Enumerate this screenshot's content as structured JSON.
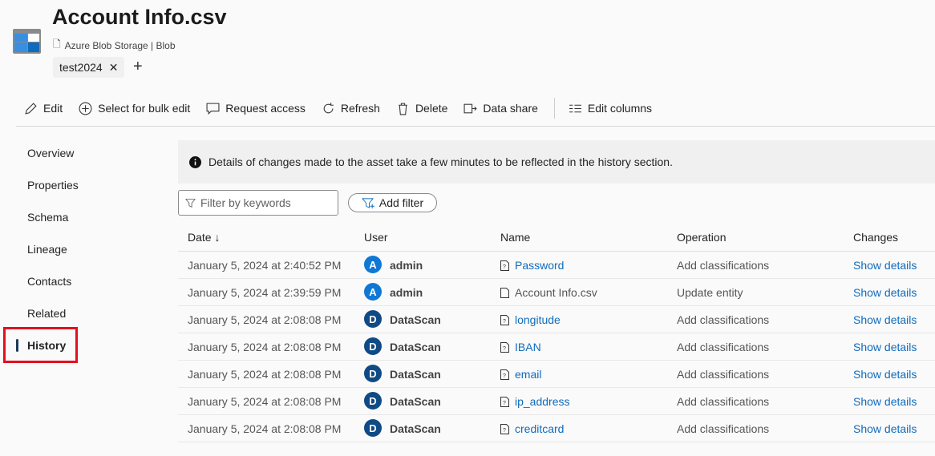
{
  "header": {
    "title": "Account Info.csv",
    "source": "Azure Blob Storage | Blob",
    "tag": "test2024"
  },
  "toolbar": {
    "edit": "Edit",
    "bulk": "Select for bulk edit",
    "request": "Request access",
    "refresh": "Refresh",
    "delete": "Delete",
    "share": "Data share",
    "columns": "Edit columns"
  },
  "nav": [
    {
      "label": "Overview"
    },
    {
      "label": "Properties"
    },
    {
      "label": "Schema"
    },
    {
      "label": "Lineage"
    },
    {
      "label": "Contacts"
    },
    {
      "label": "Related"
    },
    {
      "label": "History",
      "selected": true
    }
  ],
  "info": "Details of changes made to the asset take a few minutes to be reflected in the history section.",
  "filter": {
    "placeholder": "Filter by keywords",
    "add": "Add filter"
  },
  "columns": [
    "Date ↓",
    "User",
    "Name",
    "Operation",
    "Changes"
  ],
  "rows": [
    {
      "date": "January 5, 2024 at 2:40:52 PM",
      "initial": "A",
      "user": "admin",
      "name": "Password",
      "link": true,
      "op": "Add classifications",
      "changes": "Show details"
    },
    {
      "date": "January 5, 2024 at 2:39:59 PM",
      "initial": "A",
      "user": "admin",
      "name": "Account Info.csv",
      "link": false,
      "op": "Update entity",
      "changes": "Show details"
    },
    {
      "date": "January 5, 2024 at 2:08:08 PM",
      "initial": "D",
      "user": "DataScan",
      "name": "longitude",
      "link": true,
      "op": "Add classifications",
      "changes": "Show details"
    },
    {
      "date": "January 5, 2024 at 2:08:08 PM",
      "initial": "D",
      "user": "DataScan",
      "name": "IBAN",
      "link": true,
      "op": "Add classifications",
      "changes": "Show details"
    },
    {
      "date": "January 5, 2024 at 2:08:08 PM",
      "initial": "D",
      "user": "DataScan",
      "name": "email",
      "link": true,
      "op": "Add classifications",
      "changes": "Show details"
    },
    {
      "date": "January 5, 2024 at 2:08:08 PM",
      "initial": "D",
      "user": "DataScan",
      "name": "ip_address",
      "link": true,
      "op": "Add classifications",
      "changes": "Show details"
    },
    {
      "date": "January 5, 2024 at 2:08:08 PM",
      "initial": "D",
      "user": "DataScan",
      "name": "creditcard",
      "link": true,
      "op": "Add classifications",
      "changes": "Show details"
    }
  ],
  "colors": {
    "accent": "#0f6cbd",
    "admin_avatar": "#0f78d4",
    "datascan_avatar": "#0f4a85",
    "highlight": "#e3101e"
  }
}
